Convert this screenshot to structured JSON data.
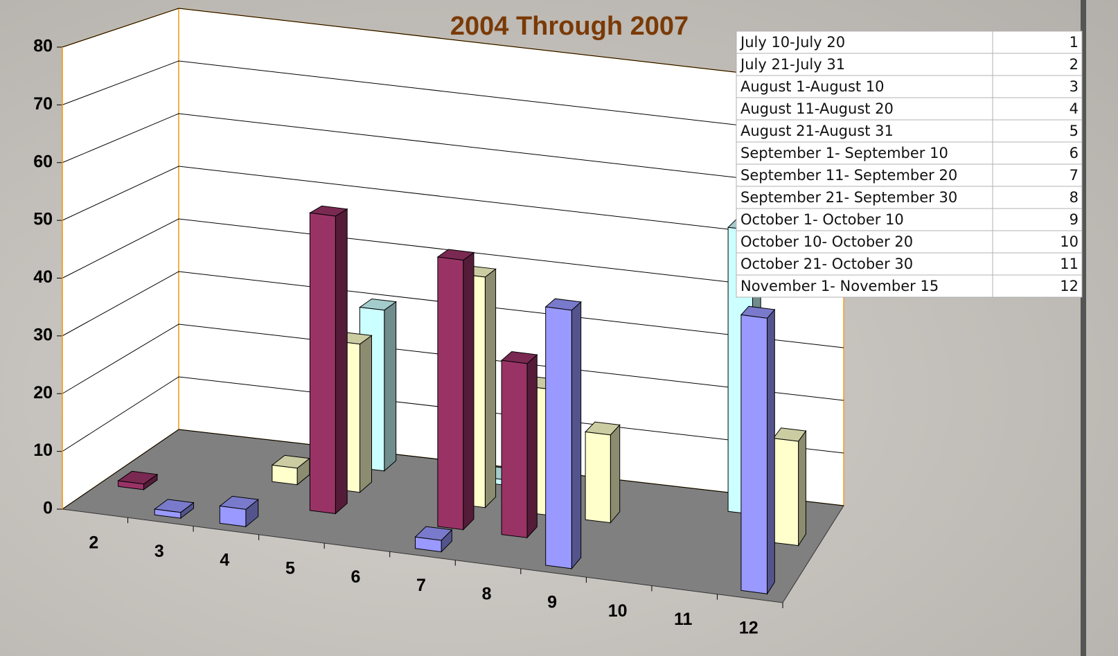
{
  "chart_data": {
    "type": "bar",
    "title": "2004 Through 2007",
    "categories": [
      "2",
      "3",
      "4",
      "5",
      "6",
      "7",
      "8",
      "9",
      "10",
      "11",
      "12"
    ],
    "series": [
      {
        "color": "#9999ff",
        "values": [
          null,
          1,
          3,
          null,
          null,
          2,
          null,
          45,
          null,
          null,
          48
        ]
      },
      {
        "color": "#993366",
        "values": [
          1,
          null,
          null,
          53,
          null,
          48,
          31,
          null,
          null,
          null,
          null
        ]
      },
      {
        "color": "#ffffcc",
        "values": [
          null,
          null,
          3,
          27,
          null,
          42,
          23,
          16,
          null,
          null,
          19
        ]
      },
      {
        "color": "#ccffff",
        "values": [
          null,
          null,
          null,
          30,
          null,
          1,
          13,
          null,
          null,
          53,
          null
        ]
      }
    ],
    "ylim": [
      0,
      80
    ],
    "yticks": [
      0,
      10,
      20,
      30,
      40,
      50,
      60,
      70,
      80
    ],
    "grid": true,
    "floor_color": "#808080",
    "wall_color": "#ffffff"
  },
  "table": {
    "rows": [
      [
        "July 10-July 20",
        "1"
      ],
      [
        "July 21-July 31",
        "2"
      ],
      [
        "August 1-August 10",
        "3"
      ],
      [
        "August 11-August 20",
        "4"
      ],
      [
        "August 21-August 31",
        "5"
      ],
      [
        "September 1- September 10",
        "6"
      ],
      [
        "September 11- September 20",
        "7"
      ],
      [
        "September 21- September 30",
        "8"
      ],
      [
        "October 1- October 10",
        "9"
      ],
      [
        "October 10- October 20",
        "10"
      ],
      [
        "October 21- October 30",
        "11"
      ],
      [
        "November 1- November 15",
        "12"
      ]
    ]
  }
}
